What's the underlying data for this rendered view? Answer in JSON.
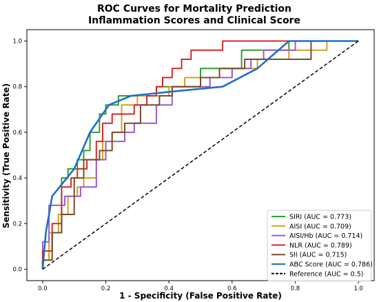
{
  "chart_data": {
    "type": "line",
    "title_line1": "ROC Curves for Mortality Prediction",
    "title_line2": "Inflammation Scores and Clinical Score",
    "xlabel": "1 - Specificity (False Positive Rate)",
    "ylabel": "Sensitivity (True Positive Rate)",
    "xlim": [
      -0.05,
      1.05
    ],
    "ylim": [
      -0.05,
      1.05
    ],
    "xticks": [
      0.0,
      0.2,
      0.4,
      0.6,
      0.8,
      1.0
    ],
    "yticks": [
      0.0,
      0.2,
      0.4,
      0.6,
      0.8,
      1.0
    ],
    "xtick_labels": [
      "0.0",
      "0.2",
      "0.4",
      "0.6",
      "0.8",
      "1.0"
    ],
    "ytick_labels": [
      "0.0",
      "0.2",
      "0.4",
      "0.6",
      "0.8",
      "1.0"
    ],
    "grid": false,
    "legend_position": "lower-right",
    "series": [
      {
        "name": "SIRI (AUC = 0.773)",
        "color": "#2ca02c",
        "style": "step",
        "x": [
          0.0,
          0.0,
          0.03,
          0.03,
          0.06,
          0.06,
          0.08,
          0.08,
          0.11,
          0.11,
          0.13,
          0.13,
          0.15,
          0.15,
          0.18,
          0.18,
          0.2,
          0.2,
          0.24,
          0.24,
          0.36,
          0.36,
          0.5,
          0.5,
          0.63,
          0.63,
          0.78,
          0.78,
          0.88,
          0.88,
          1.0
        ],
        "y": [
          0.0,
          0.08,
          0.08,
          0.16,
          0.16,
          0.4,
          0.4,
          0.44,
          0.44,
          0.48,
          0.48,
          0.52,
          0.52,
          0.6,
          0.6,
          0.68,
          0.68,
          0.72,
          0.72,
          0.76,
          0.76,
          0.8,
          0.8,
          0.88,
          0.88,
          0.96,
          0.96,
          1.0,
          1.0,
          1.0,
          1.0
        ]
      },
      {
        "name": "AISI (AUC = 0.709)",
        "color": "#d4a017",
        "style": "step",
        "x": [
          0.0,
          0.0,
          0.02,
          0.02,
          0.05,
          0.05,
          0.08,
          0.08,
          0.11,
          0.11,
          0.13,
          0.13,
          0.17,
          0.17,
          0.19,
          0.19,
          0.22,
          0.22,
          0.25,
          0.25,
          0.3,
          0.3,
          0.4,
          0.4,
          0.45,
          0.45,
          0.6,
          0.6,
          0.68,
          0.68,
          0.78,
          0.78,
          0.9,
          0.9,
          1.0
        ],
        "y": [
          0.0,
          0.04,
          0.04,
          0.16,
          0.16,
          0.24,
          0.24,
          0.32,
          0.32,
          0.36,
          0.36,
          0.4,
          0.4,
          0.48,
          0.48,
          0.56,
          0.56,
          0.6,
          0.6,
          0.72,
          0.72,
          0.76,
          0.76,
          0.8,
          0.8,
          0.84,
          0.84,
          0.88,
          0.88,
          0.92,
          0.92,
          0.96,
          0.96,
          1.0,
          1.0
        ]
      },
      {
        "name": "AISI/Hb (AUC = 0.714)",
        "color": "#9b59d0",
        "style": "step",
        "x": [
          0.0,
          0.0,
          0.02,
          0.02,
          0.07,
          0.07,
          0.12,
          0.12,
          0.17,
          0.17,
          0.2,
          0.2,
          0.26,
          0.26,
          0.29,
          0.29,
          0.36,
          0.36,
          0.41,
          0.41,
          0.53,
          0.53,
          0.6,
          0.6,
          0.66,
          0.66,
          0.7,
          0.7,
          0.8,
          0.8,
          1.0
        ],
        "y": [
          0.0,
          0.12,
          0.12,
          0.28,
          0.28,
          0.32,
          0.32,
          0.36,
          0.36,
          0.48,
          0.48,
          0.56,
          0.56,
          0.6,
          0.6,
          0.64,
          0.64,
          0.72,
          0.72,
          0.8,
          0.8,
          0.84,
          0.84,
          0.88,
          0.88,
          0.92,
          0.92,
          0.96,
          0.96,
          1.0,
          1.0
        ]
      },
      {
        "name": "NLR (AUC = 0.789)",
        "color": "#d62728",
        "style": "step",
        "x": [
          0.0,
          0.0,
          0.03,
          0.03,
          0.06,
          0.06,
          0.09,
          0.09,
          0.11,
          0.11,
          0.14,
          0.14,
          0.17,
          0.17,
          0.19,
          0.19,
          0.22,
          0.22,
          0.29,
          0.29,
          0.33,
          0.33,
          0.36,
          0.36,
          0.38,
          0.38,
          0.41,
          0.41,
          0.44,
          0.44,
          0.47,
          0.47,
          0.51,
          0.51,
          0.55,
          0.55,
          0.57,
          0.57,
          1.0
        ],
        "y": [
          0.0,
          0.08,
          0.08,
          0.2,
          0.2,
          0.36,
          0.36,
          0.4,
          0.4,
          0.44,
          0.44,
          0.48,
          0.48,
          0.56,
          0.56,
          0.64,
          0.64,
          0.68,
          0.68,
          0.72,
          0.72,
          0.76,
          0.76,
          0.8,
          0.8,
          0.84,
          0.84,
          0.88,
          0.88,
          0.92,
          0.92,
          0.96,
          0.96,
          0.96,
          0.96,
          0.96,
          0.96,
          1.0,
          1.0
        ]
      },
      {
        "name": "SII (AUC = 0.715)",
        "color": "#7b4b2a",
        "style": "step",
        "x": [
          0.0,
          0.0,
          0.03,
          0.03,
          0.06,
          0.06,
          0.1,
          0.1,
          0.13,
          0.13,
          0.18,
          0.18,
          0.22,
          0.22,
          0.26,
          0.26,
          0.31,
          0.31,
          0.37,
          0.37,
          0.41,
          0.41,
          0.5,
          0.5,
          0.56,
          0.56,
          0.64,
          0.64,
          0.85,
          0.85,
          0.9,
          0.9,
          1.0
        ],
        "y": [
          0.0,
          0.04,
          0.04,
          0.16,
          0.16,
          0.24,
          0.24,
          0.4,
          0.4,
          0.48,
          0.48,
          0.52,
          0.52,
          0.6,
          0.6,
          0.64,
          0.64,
          0.72,
          0.72,
          0.76,
          0.76,
          0.8,
          0.8,
          0.84,
          0.84,
          0.88,
          0.88,
          0.92,
          0.92,
          1.0,
          1.0,
          1.0,
          1.0
        ]
      },
      {
        "name": "ABC Score (AUC = 0.786)",
        "color": "#1f6fc5",
        "style": "line",
        "width": 2.6,
        "x": [
          0.0,
          0.005,
          0.01,
          0.03,
          0.1,
          0.15,
          0.21,
          0.28,
          0.42,
          0.57,
          0.68,
          0.78,
          1.0
        ],
        "y": [
          0.0,
          0.08,
          0.16,
          0.32,
          0.44,
          0.6,
          0.72,
          0.76,
          0.78,
          0.8,
          0.88,
          1.0,
          1.0
        ]
      },
      {
        "name": "Reference (AUC = 0.5)",
        "color": "#000000",
        "style": "line",
        "dashed": true,
        "width": 1.5,
        "x": [
          0.0,
          1.0
        ],
        "y": [
          0.0,
          1.0
        ]
      }
    ]
  }
}
